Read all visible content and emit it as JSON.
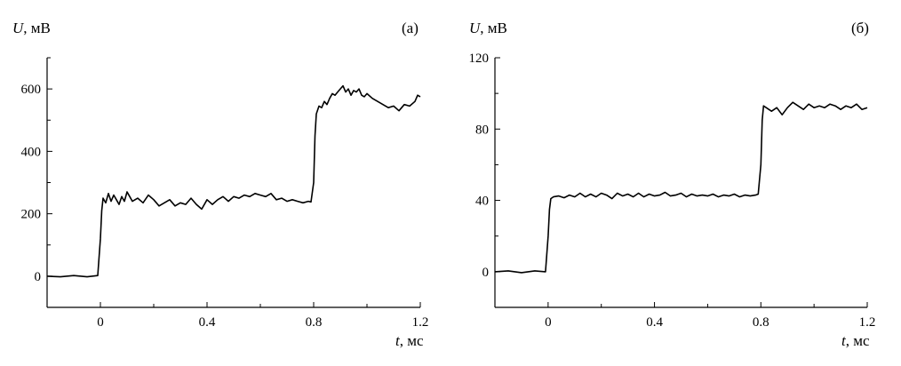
{
  "chart_data": [
    {
      "type": "line",
      "panel_label": "(а)",
      "ylabel_var": "U",
      "ylabel_unit": ", мВ",
      "xlabel_var": "t",
      "xlabel_unit": ", мс",
      "xlim": [
        -0.2,
        1.2
      ],
      "ylim": [
        -100,
        700
      ],
      "x_ticks": [
        0,
        0.4,
        0.8,
        1.2
      ],
      "x_tick_labels": [
        "0",
        "0.4",
        "0.8",
        "1.2"
      ],
      "y_ticks": [
        0,
        200,
        400,
        600
      ],
      "y_tick_labels": [
        "0",
        "200",
        "400",
        "600"
      ],
      "grid": false,
      "series": [
        {
          "color": "#000000",
          "x": [
            -0.2,
            -0.15,
            -0.1,
            -0.05,
            -0.01,
            0.0,
            0.005,
            0.01,
            0.02,
            0.03,
            0.04,
            0.05,
            0.06,
            0.07,
            0.08,
            0.09,
            0.1,
            0.11,
            0.12,
            0.14,
            0.16,
            0.18,
            0.2,
            0.22,
            0.24,
            0.26,
            0.28,
            0.3,
            0.32,
            0.34,
            0.36,
            0.38,
            0.4,
            0.42,
            0.44,
            0.46,
            0.48,
            0.5,
            0.52,
            0.54,
            0.56,
            0.58,
            0.6,
            0.62,
            0.64,
            0.66,
            0.68,
            0.7,
            0.72,
            0.74,
            0.76,
            0.78,
            0.79,
            0.8,
            0.805,
            0.81,
            0.82,
            0.83,
            0.84,
            0.85,
            0.86,
            0.87,
            0.88,
            0.89,
            0.9,
            0.91,
            0.92,
            0.93,
            0.94,
            0.95,
            0.96,
            0.97,
            0.98,
            0.99,
            1.0,
            1.02,
            1.04,
            1.06,
            1.08,
            1.1,
            1.12,
            1.14,
            1.16,
            1.18,
            1.19,
            1.2
          ],
          "y": [
            0,
            -2,
            2,
            -2,
            2,
            120,
            210,
            250,
            235,
            265,
            240,
            260,
            245,
            230,
            255,
            240,
            270,
            255,
            240,
            250,
            235,
            260,
            245,
            225,
            235,
            245,
            225,
            235,
            230,
            250,
            230,
            215,
            245,
            230,
            245,
            255,
            240,
            255,
            250,
            260,
            255,
            265,
            260,
            255,
            265,
            245,
            250,
            240,
            245,
            240,
            235,
            240,
            238,
            300,
            450,
            520,
            545,
            540,
            560,
            550,
            570,
            585,
            580,
            590,
            600,
            610,
            590,
            600,
            580,
            595,
            590,
            600,
            580,
            575,
            585,
            570,
            560,
            550,
            540,
            545,
            530,
            550,
            545,
            560,
            580,
            575
          ]
        }
      ]
    },
    {
      "type": "line",
      "panel_label": "(б)",
      "ylabel_var": "U",
      "ylabel_unit": ", мВ",
      "xlabel_var": "t",
      "xlabel_unit": ", мс",
      "xlim": [
        -0.2,
        1.2
      ],
      "ylim": [
        -20,
        120
      ],
      "x_ticks": [
        0,
        0.4,
        0.8,
        1.2
      ],
      "x_tick_labels": [
        "0",
        "0.4",
        "0.8",
        "1.2"
      ],
      "y_ticks": [
        0,
        40,
        80,
        120
      ],
      "y_tick_labels": [
        "0",
        "40",
        "80",
        "120"
      ],
      "grid": false,
      "series": [
        {
          "color": "#000000",
          "x": [
            -0.2,
            -0.15,
            -0.1,
            -0.05,
            -0.01,
            0.0,
            0.005,
            0.01,
            0.02,
            0.04,
            0.06,
            0.08,
            0.1,
            0.12,
            0.14,
            0.16,
            0.18,
            0.2,
            0.22,
            0.24,
            0.26,
            0.28,
            0.3,
            0.32,
            0.34,
            0.36,
            0.38,
            0.4,
            0.42,
            0.44,
            0.46,
            0.48,
            0.5,
            0.52,
            0.54,
            0.56,
            0.58,
            0.6,
            0.62,
            0.64,
            0.66,
            0.68,
            0.7,
            0.72,
            0.74,
            0.76,
            0.78,
            0.79,
            0.8,
            0.805,
            0.81,
            0.82,
            0.84,
            0.86,
            0.88,
            0.9,
            0.92,
            0.94,
            0.96,
            0.98,
            1.0,
            1.02,
            1.04,
            1.06,
            1.08,
            1.1,
            1.12,
            1.14,
            1.16,
            1.18,
            1.2
          ],
          "y": [
            0,
            0.5,
            -0.5,
            0.5,
            0,
            20,
            35,
            41,
            42,
            42.5,
            41.5,
            43,
            42,
            44,
            42,
            43.5,
            42,
            44,
            43,
            41,
            44,
            42.5,
            43.5,
            42,
            44,
            42,
            43.5,
            42.5,
            43,
            44.5,
            42.5,
            43,
            44,
            42,
            43.5,
            42.5,
            43,
            42.5,
            43.5,
            42,
            43,
            42.5,
            43.5,
            42,
            43,
            42.5,
            43,
            43.5,
            60,
            85,
            93,
            92,
            90,
            92,
            88,
            92,
            95,
            93,
            91,
            94,
            92,
            93,
            92,
            94,
            93,
            91,
            93,
            92,
            94,
            91,
            92
          ]
        }
      ]
    }
  ]
}
